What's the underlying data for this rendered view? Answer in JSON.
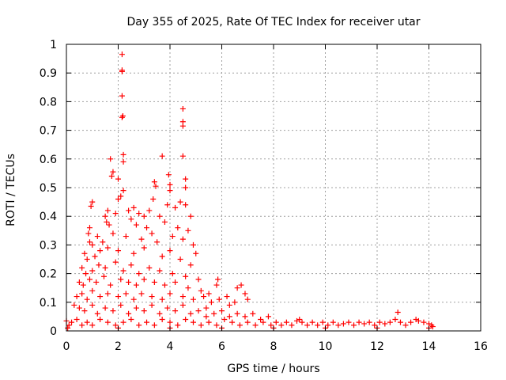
{
  "chart_data": {
    "type": "scatter",
    "title": "Day 355 of 2025, Rate Of TEC Index for receiver utar",
    "xlabel": "GPS time / hours",
    "ylabel": "ROTI / TECUs",
    "xlim": [
      0,
      16
    ],
    "ylim": [
      0,
      1
    ],
    "xticks": [
      "0",
      "2",
      "4",
      "6",
      "8",
      "10",
      "12",
      "14",
      "16"
    ],
    "yticks": [
      "0",
      "0.1",
      "0.2",
      "0.3",
      "0.4",
      "0.5",
      "0.6",
      "0.7",
      "0.8",
      "0.9",
      "1"
    ],
    "grid": true,
    "marker": "+",
    "color": "#ff0000",
    "series": [
      {
        "name": "ROTI",
        "points": [
          [
            2.15,
            0.965
          ],
          [
            2.15,
            0.91
          ],
          [
            2.15,
            0.905
          ],
          [
            2.15,
            0.82
          ],
          [
            2.18,
            0.75
          ],
          [
            2.15,
            0.745
          ],
          [
            4.5,
            0.775
          ],
          [
            4.5,
            0.73
          ],
          [
            4.5,
            0.715
          ],
          [
            4.5,
            0.61
          ],
          [
            3.7,
            0.61
          ],
          [
            2.2,
            0.615
          ],
          [
            2.2,
            0.59
          ],
          [
            1.7,
            0.6
          ],
          [
            1.8,
            0.555
          ],
          [
            1.75,
            0.54
          ],
          [
            2.0,
            0.53
          ],
          [
            3.4,
            0.52
          ],
          [
            3.45,
            0.505
          ],
          [
            3.95,
            0.545
          ],
          [
            4.0,
            0.51
          ],
          [
            4.6,
            0.53
          ],
          [
            4.6,
            0.5
          ],
          [
            2.2,
            0.49
          ],
          [
            2.1,
            0.47
          ],
          [
            2.0,
            0.46
          ],
          [
            3.35,
            0.46
          ],
          [
            4.0,
            0.49
          ],
          [
            4.4,
            0.45
          ],
          [
            4.6,
            0.44
          ],
          [
            3.9,
            0.44
          ],
          [
            1.0,
            0.45
          ],
          [
            0.95,
            0.435
          ],
          [
            1.6,
            0.42
          ],
          [
            1.9,
            0.41
          ],
          [
            2.4,
            0.42
          ],
          [
            2.6,
            0.43
          ],
          [
            2.8,
            0.41
          ],
          [
            3.0,
            0.4
          ],
          [
            3.2,
            0.42
          ],
          [
            3.6,
            0.4
          ],
          [
            4.2,
            0.43
          ],
          [
            4.8,
            0.4
          ],
          [
            2.5,
            0.39
          ],
          [
            1.5,
            0.4
          ],
          [
            1.55,
            0.38
          ],
          [
            1.65,
            0.37
          ],
          [
            2.7,
            0.37
          ],
          [
            3.1,
            0.36
          ],
          [
            3.8,
            0.38
          ],
          [
            4.3,
            0.36
          ],
          [
            4.7,
            0.35
          ],
          [
            0.9,
            0.36
          ],
          [
            0.85,
            0.34
          ],
          [
            0.9,
            0.31
          ],
          [
            1.0,
            0.3
          ],
          [
            1.2,
            0.33
          ],
          [
            1.4,
            0.31
          ],
          [
            1.8,
            0.34
          ],
          [
            2.3,
            0.33
          ],
          [
            2.9,
            0.32
          ],
          [
            3.3,
            0.34
          ],
          [
            3.5,
            0.31
          ],
          [
            4.1,
            0.33
          ],
          [
            4.5,
            0.32
          ],
          [
            4.9,
            0.3
          ],
          [
            5.0,
            0.27
          ],
          [
            0.7,
            0.27
          ],
          [
            0.8,
            0.25
          ],
          [
            1.1,
            0.26
          ],
          [
            1.3,
            0.28
          ],
          [
            1.6,
            0.29
          ],
          [
            2.0,
            0.28
          ],
          [
            2.6,
            0.27
          ],
          [
            3.0,
            0.29
          ],
          [
            3.7,
            0.26
          ],
          [
            4.0,
            0.28
          ],
          [
            4.4,
            0.25
          ],
          [
            4.8,
            0.23
          ],
          [
            0.6,
            0.22
          ],
          [
            0.75,
            0.2
          ],
          [
            1.0,
            0.21
          ],
          [
            1.25,
            0.23
          ],
          [
            1.5,
            0.22
          ],
          [
            1.9,
            0.24
          ],
          [
            2.2,
            0.21
          ],
          [
            2.5,
            0.23
          ],
          [
            2.8,
            0.2
          ],
          [
            3.2,
            0.22
          ],
          [
            3.6,
            0.21
          ],
          [
            4.1,
            0.2
          ],
          [
            4.6,
            0.19
          ],
          [
            5.1,
            0.18
          ],
          [
            0.5,
            0.17
          ],
          [
            0.65,
            0.16
          ],
          [
            0.9,
            0.18
          ],
          [
            1.15,
            0.17
          ],
          [
            1.45,
            0.19
          ],
          [
            1.7,
            0.16
          ],
          [
            2.1,
            0.18
          ],
          [
            2.4,
            0.17
          ],
          [
            2.7,
            0.16
          ],
          [
            3.0,
            0.18
          ],
          [
            3.4,
            0.17
          ],
          [
            3.8,
            0.16
          ],
          [
            4.2,
            0.17
          ],
          [
            4.7,
            0.15
          ],
          [
            5.2,
            0.14
          ],
          [
            5.5,
            0.13
          ],
          [
            0.4,
            0.12
          ],
          [
            0.6,
            0.13
          ],
          [
            0.8,
            0.11
          ],
          [
            1.0,
            0.14
          ],
          [
            1.3,
            0.12
          ],
          [
            1.6,
            0.13
          ],
          [
            2.0,
            0.12
          ],
          [
            2.3,
            0.13
          ],
          [
            2.6,
            0.11
          ],
          [
            2.9,
            0.13
          ],
          [
            3.3,
            0.12
          ],
          [
            3.7,
            0.11
          ],
          [
            4.0,
            0.13
          ],
          [
            4.5,
            0.12
          ],
          [
            4.9,
            0.11
          ],
          [
            5.3,
            0.12
          ],
          [
            5.6,
            0.1
          ],
          [
            5.9,
            0.11
          ],
          [
            5.8,
            0.16
          ],
          [
            5.85,
            0.18
          ],
          [
            6.2,
            0.12
          ],
          [
            6.6,
            0.15
          ],
          [
            6.75,
            0.16
          ],
          [
            6.9,
            0.13
          ],
          [
            7.0,
            0.11
          ],
          [
            6.5,
            0.1
          ],
          [
            6.3,
            0.09
          ],
          [
            5.4,
            0.08
          ],
          [
            0.3,
            0.09
          ],
          [
            0.5,
            0.08
          ],
          [
            0.7,
            0.07
          ],
          [
            1.0,
            0.09
          ],
          [
            1.2,
            0.06
          ],
          [
            1.5,
            0.08
          ],
          [
            1.8,
            0.07
          ],
          [
            2.1,
            0.09
          ],
          [
            2.4,
            0.06
          ],
          [
            2.7,
            0.08
          ],
          [
            3.0,
            0.07
          ],
          [
            3.3,
            0.09
          ],
          [
            3.6,
            0.06
          ],
          [
            3.9,
            0.08
          ],
          [
            4.2,
            0.07
          ],
          [
            4.5,
            0.09
          ],
          [
            4.8,
            0.06
          ],
          [
            5.1,
            0.07
          ],
          [
            5.4,
            0.05
          ],
          [
            5.7,
            0.06
          ],
          [
            6.0,
            0.07
          ],
          [
            6.3,
            0.05
          ],
          [
            6.6,
            0.06
          ],
          [
            6.9,
            0.05
          ],
          [
            7.2,
            0.06
          ],
          [
            7.5,
            0.04
          ],
          [
            7.8,
            0.05
          ],
          [
            0.0,
            0.035
          ],
          [
            0.1,
            0.02
          ],
          [
            0.2,
            0.03
          ],
          [
            0.4,
            0.04
          ],
          [
            0.6,
            0.02
          ],
          [
            0.8,
            0.03
          ],
          [
            1.0,
            0.02
          ],
          [
            1.3,
            0.04
          ],
          [
            1.6,
            0.03
          ],
          [
            1.9,
            0.02
          ],
          [
            2.2,
            0.03
          ],
          [
            2.5,
            0.04
          ],
          [
            2.8,
            0.02
          ],
          [
            3.1,
            0.03
          ],
          [
            3.4,
            0.02
          ],
          [
            3.7,
            0.04
          ],
          [
            4.0,
            0.03
          ],
          [
            4.3,
            0.02
          ],
          [
            4.6,
            0.04
          ],
          [
            4.9,
            0.03
          ],
          [
            5.2,
            0.02
          ],
          [
            5.5,
            0.03
          ],
          [
            5.8,
            0.02
          ],
          [
            6.1,
            0.04
          ],
          [
            6.4,
            0.03
          ],
          [
            6.7,
            0.02
          ],
          [
            7.0,
            0.03
          ],
          [
            7.3,
            0.02
          ],
          [
            7.6,
            0.03
          ],
          [
            7.9,
            0.02
          ],
          [
            8.1,
            0.03
          ],
          [
            8.3,
            0.02
          ],
          [
            8.5,
            0.03
          ],
          [
            8.7,
            0.02
          ],
          [
            8.9,
            0.035
          ],
          [
            9.0,
            0.04
          ],
          [
            9.1,
            0.03
          ],
          [
            9.3,
            0.02
          ],
          [
            9.5,
            0.03
          ],
          [
            9.7,
            0.02
          ],
          [
            9.9,
            0.03
          ],
          [
            10.1,
            0.02
          ],
          [
            10.3,
            0.03
          ],
          [
            10.5,
            0.02
          ],
          [
            10.7,
            0.025
          ],
          [
            10.9,
            0.03
          ],
          [
            11.1,
            0.02
          ],
          [
            11.3,
            0.03
          ],
          [
            11.5,
            0.025
          ],
          [
            11.7,
            0.03
          ],
          [
            11.9,
            0.02
          ],
          [
            12.1,
            0.03
          ],
          [
            12.3,
            0.025
          ],
          [
            12.5,
            0.03
          ],
          [
            12.7,
            0.04
          ],
          [
            12.8,
            0.065
          ],
          [
            12.9,
            0.03
          ],
          [
            13.1,
            0.02
          ],
          [
            13.3,
            0.03
          ],
          [
            13.5,
            0.04
          ],
          [
            13.6,
            0.035
          ],
          [
            13.8,
            0.03
          ],
          [
            14.0,
            0.025
          ],
          [
            14.1,
            0.02
          ],
          [
            14.15,
            0.015
          ],
          [
            0.05,
            0.01
          ],
          [
            2.0,
            0.01
          ],
          [
            4.0,
            0.01
          ],
          [
            6.0,
            0.01
          ],
          [
            8.0,
            0.01
          ],
          [
            10.0,
            0.01
          ],
          [
            12.0,
            0.01
          ],
          [
            14.0,
            0.01
          ]
        ]
      }
    ]
  }
}
